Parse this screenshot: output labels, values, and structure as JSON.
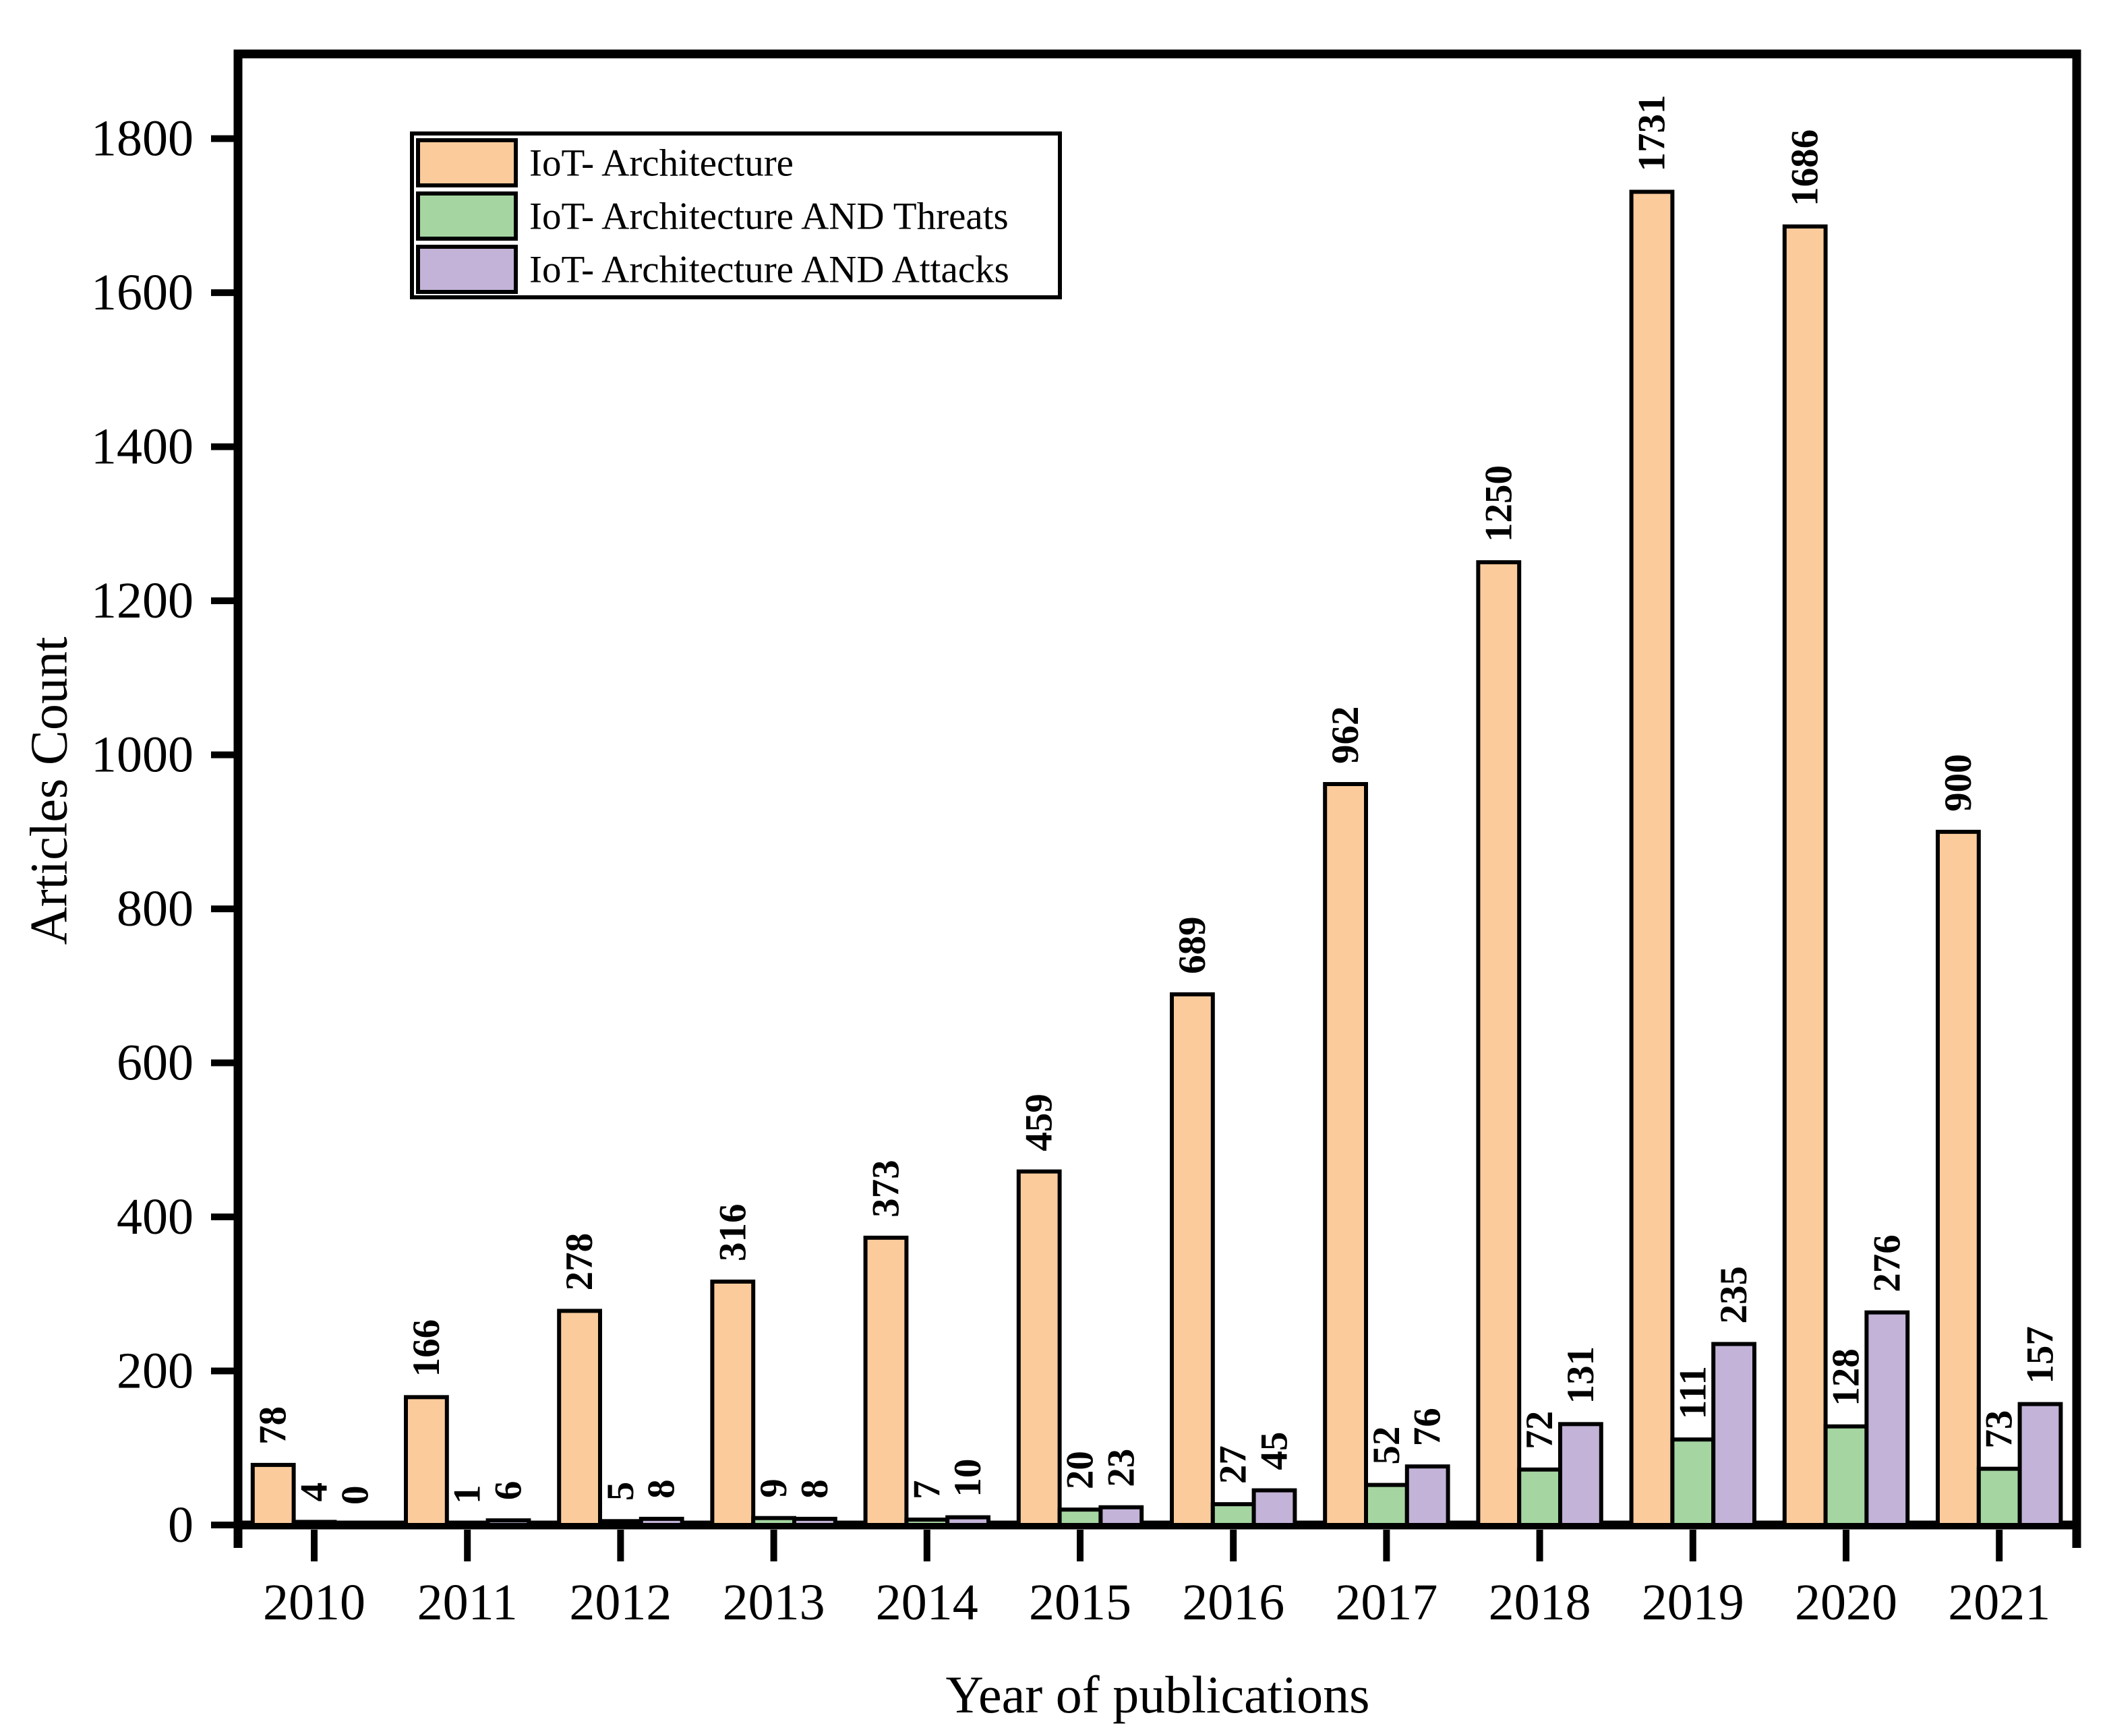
{
  "chart_data": {
    "type": "bar",
    "title": "",
    "categories": [
      "2010",
      "2011",
      "2012",
      "2013",
      "2014",
      "2015",
      "2016",
      "2017",
      "2018",
      "2019",
      "2020",
      "2021"
    ],
    "series": [
      {
        "name": "IoT- Architecture",
        "color": "#FBCB9B",
        "values": [
          78,
          166,
          278,
          316,
          373,
          459,
          689,
          962,
          1250,
          1731,
          1686,
          900
        ]
      },
      {
        "name": "IoT- Architecture AND Threats",
        "color": "#A5D5A1",
        "values": [
          4,
          1,
          5,
          9,
          7,
          20,
          27,
          52,
          72,
          111,
          128,
          73
        ]
      },
      {
        "name": "IoT- Architecture AND Attacks",
        "color": "#C3B3D8",
        "values": [
          0,
          6,
          8,
          8,
          10,
          23,
          45,
          76,
          131,
          235,
          276,
          157
        ]
      }
    ],
    "xlabel": "Year of publications",
    "ylabel": "Articles Count",
    "ylim": [
      0,
      1910
    ],
    "y_ticks": [
      0,
      200,
      400,
      600,
      800,
      1000,
      1200,
      1400,
      1600,
      1800
    ],
    "grid": false,
    "legend_position": "top-left-inside",
    "bar_value_labels": true,
    "value_label_rotation": -90,
    "axis_color": "#000000",
    "bar_outline_color": "#000000"
  }
}
